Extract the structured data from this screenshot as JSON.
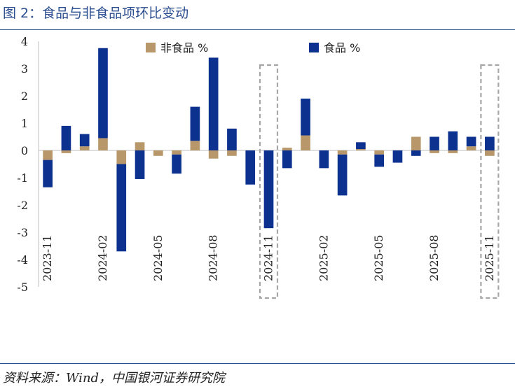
{
  "figure": {
    "title": "图 2：食品与非食品项环比变动",
    "source": "资料来源：Wind，中国银河证券研究院"
  },
  "colors": {
    "non_food": "#b8986a",
    "food": "#0d318e",
    "highlight": "#a6a6a6",
    "rule": "#2a4d8f"
  },
  "chart_data": {
    "type": "bar",
    "stacked": true,
    "title": "",
    "xlabel": "",
    "ylabel": "",
    "ylim": [
      -5,
      4
    ],
    "yticks": [
      4,
      3,
      2,
      1,
      0,
      -1,
      -2,
      -3,
      -4,
      -5
    ],
    "legend_position": "top",
    "categories": [
      "2023-11",
      "2023-12",
      "2024-01",
      "2024-02",
      "2024-03",
      "2024-04",
      "2024-05",
      "2024-06",
      "2024-07",
      "2024-08",
      "2024-09",
      "2024-10",
      "2024-11",
      "2024-12",
      "2025-01",
      "2025-02",
      "2025-03",
      "2025-04",
      "2025-05",
      "2025-06",
      "2025-07",
      "2025-08",
      "2025-09",
      "2025-10",
      "2025-11"
    ],
    "tick_labels": [
      "2023-11",
      "2024-02",
      "2024-05",
      "2024-08",
      "2024-11",
      "2025-02",
      "2025-05",
      "2025-08",
      "2025-11"
    ],
    "series": [
      {
        "name": "非食品 %",
        "values": [
          -0.35,
          -0.1,
          0.15,
          0.45,
          -0.5,
          0.3,
          -0.2,
          -0.15,
          0.35,
          -0.3,
          -0.2,
          0.0,
          0.0,
          0.1,
          0.55,
          0.0,
          -0.15,
          0.05,
          -0.15,
          0.0,
          0.5,
          -0.1,
          -0.1,
          0.15,
          -0.2
        ]
      },
      {
        "name": "食品 %",
        "values": [
          -1.0,
          0.9,
          0.45,
          3.3,
          -3.2,
          -1.05,
          0.0,
          -0.7,
          1.25,
          3.4,
          0.8,
          -1.25,
          -2.85,
          -0.65,
          1.35,
          -0.65,
          -1.5,
          0.25,
          -0.45,
          -0.45,
          -0.2,
          0.5,
          0.7,
          0.35,
          0.5
        ]
      }
    ],
    "highlighted_categories": [
      "2024-11",
      "2025-11"
    ]
  }
}
